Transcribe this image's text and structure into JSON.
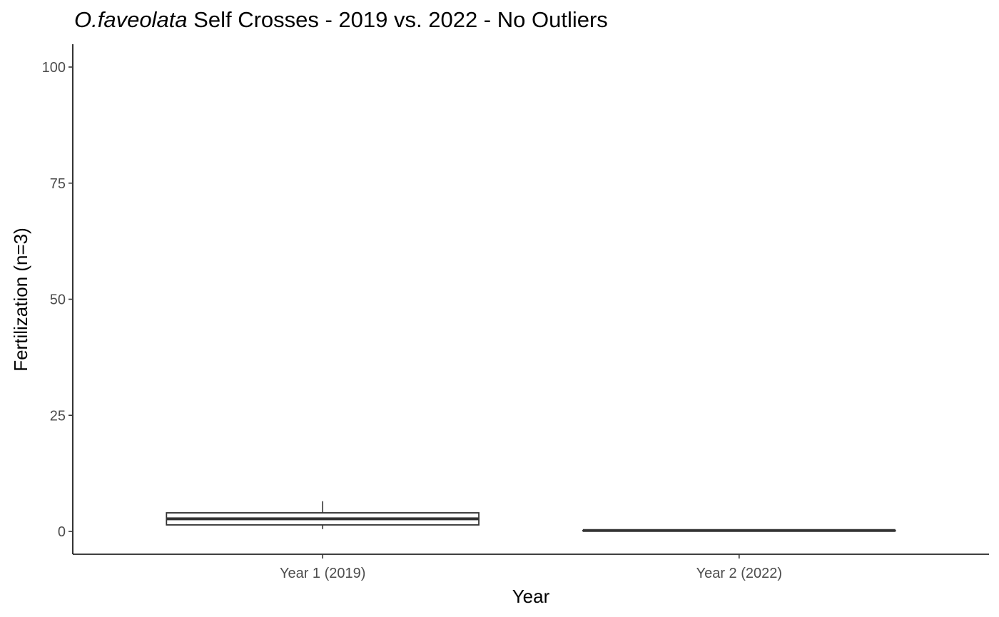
{
  "chart_data": {
    "type": "boxplot",
    "title_species": "O.faveolata",
    "title_rest": " Self Crosses - 2019 vs. 2022 - No Outliers",
    "xlabel": "Year",
    "ylabel": "Fertilization (n=3)",
    "ylim": [
      0,
      100
    ],
    "y_ticks": [
      0,
      25,
      50,
      75,
      100
    ],
    "categories": [
      "Year 1 (2019)",
      "Year 2 (2022)"
    ],
    "boxes": [
      {
        "category": "Year 1 (2019)",
        "min": 0.5,
        "q1": 1.4,
        "median": 2.7,
        "q3": 4.0,
        "max": 6.5
      },
      {
        "category": "Year 2 (2022)",
        "min": 0.2,
        "q1": 0.2,
        "median": 0.2,
        "q3": 0.2,
        "max": 0.2
      }
    ],
    "grid": false,
    "legend": "none"
  }
}
